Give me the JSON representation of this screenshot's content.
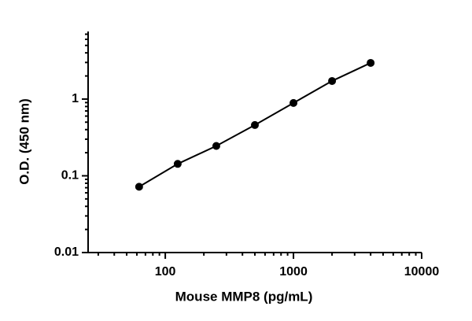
{
  "chart_data": {
    "type": "scatter",
    "x_label": "Mouse MMP8 (pg/mL)",
    "y_label": "O.D. (450 nm)",
    "x": [
      62.5,
      125,
      250,
      500,
      1000,
      2000,
      4000
    ],
    "values": [
      0.072,
      0.143,
      0.245,
      0.459,
      0.89,
      1.72,
      2.96
    ],
    "color": "#000000",
    "xlim": [
      25,
      10000
    ],
    "ylim": [
      0.01,
      7.6
    ],
    "xticks": [
      100,
      1000,
      10000
    ],
    "yticks": [
      0.01,
      0.1,
      1
    ],
    "xscale": "log",
    "yscale": "log",
    "fit_line": true
  }
}
